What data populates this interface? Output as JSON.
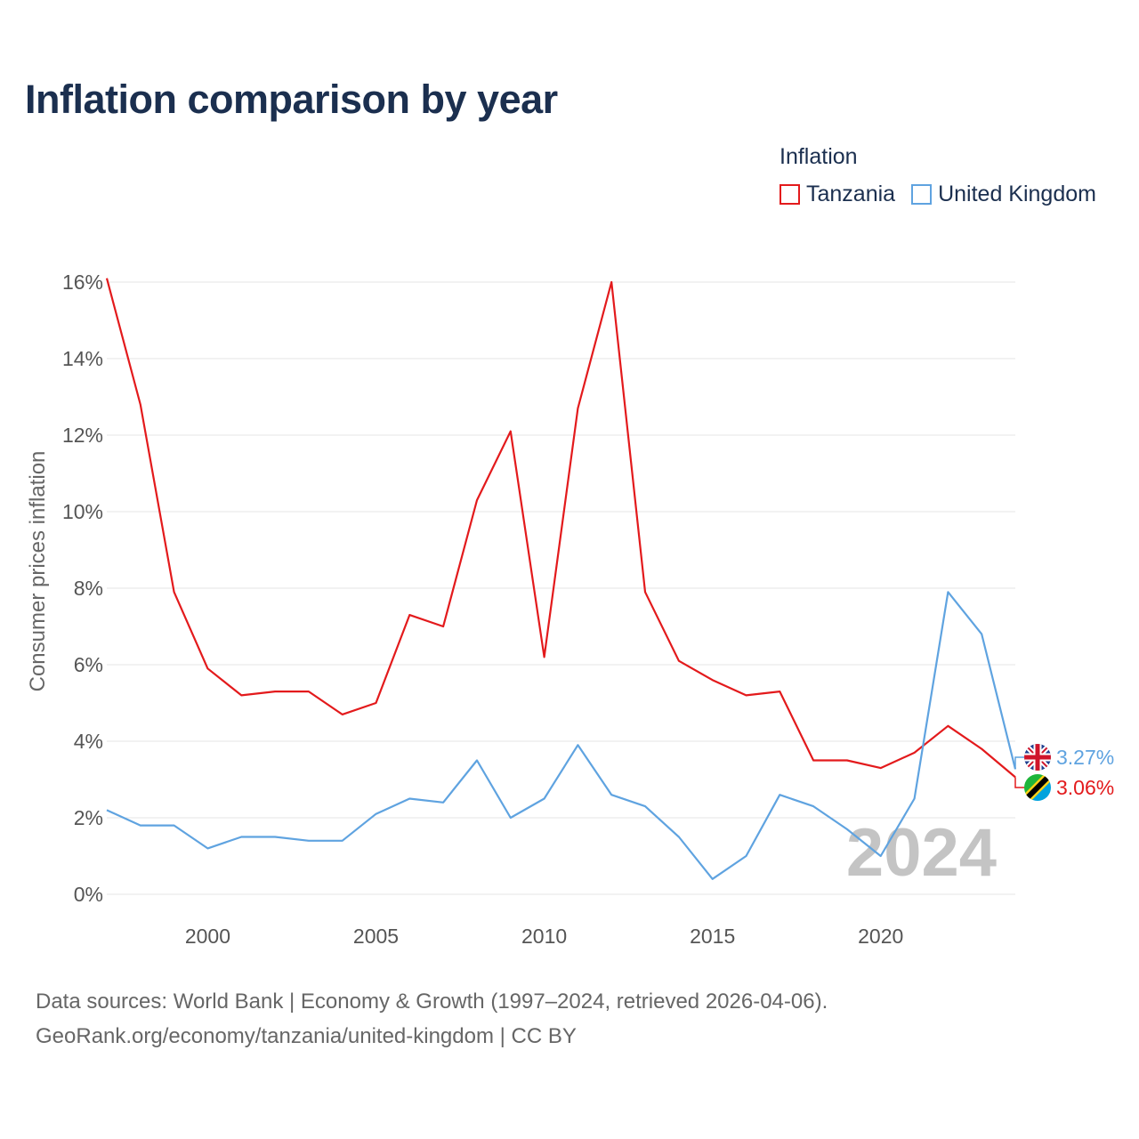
{
  "title": "Inflation comparison by year",
  "legend": {
    "title": "Inflation",
    "items": [
      {
        "name": "Tanzania",
        "color": "#e31a1c"
      },
      {
        "name": "United Kingdom",
        "color": "#5fa3e0"
      }
    ]
  },
  "footer": {
    "line1": "Data sources: World Bank | Economy & Growth (1997–2024, retrieved 2026-04-06).",
    "line2": "GeoRank.org/economy/tanzania/united-kingdom | CC BY"
  },
  "chart_data": {
    "type": "line",
    "title": "Inflation comparison by year",
    "xlabel": "",
    "ylabel": "Consumer prices inflation",
    "xlim": [
      1997,
      2024
    ],
    "ylim": [
      0,
      16
    ],
    "y_ticks": [
      0,
      2,
      4,
      6,
      8,
      10,
      12,
      14,
      16
    ],
    "y_tick_labels": [
      "0%",
      "2%",
      "4%",
      "6%",
      "8%",
      "10%",
      "12%",
      "14%",
      "16%"
    ],
    "x_ticks": [
      2000,
      2005,
      2010,
      2015,
      2020
    ],
    "x_tick_labels": [
      "2000",
      "2005",
      "2010",
      "2015",
      "2020"
    ],
    "x": [
      1997,
      1998,
      1999,
      2000,
      2001,
      2002,
      2003,
      2004,
      2005,
      2006,
      2007,
      2008,
      2009,
      2010,
      2011,
      2012,
      2013,
      2014,
      2015,
      2016,
      2017,
      2018,
      2019,
      2020,
      2021,
      2022,
      2023,
      2024
    ],
    "series": [
      {
        "name": "Tanzania",
        "color": "#e31a1c",
        "values": [
          16.1,
          12.8,
          7.9,
          5.9,
          5.2,
          5.3,
          5.3,
          4.7,
          5.0,
          7.3,
          7.0,
          10.3,
          12.1,
          6.2,
          12.7,
          16.0,
          7.9,
          6.1,
          5.6,
          5.2,
          5.3,
          3.5,
          3.5,
          3.3,
          3.7,
          4.4,
          3.8,
          3.06
        ],
        "end_label": "3.06%"
      },
      {
        "name": "United Kingdom",
        "color": "#5fa3e0",
        "values": [
          2.2,
          1.8,
          1.8,
          1.2,
          1.5,
          1.5,
          1.4,
          1.4,
          2.1,
          2.5,
          2.4,
          3.5,
          2.0,
          2.5,
          3.9,
          2.6,
          2.3,
          1.5,
          0.4,
          1.0,
          2.6,
          2.3,
          1.7,
          1.0,
          2.5,
          7.9,
          6.8,
          3.27
        ],
        "end_label": "3.27%"
      }
    ],
    "year_watermark": "2024",
    "grid": true
  }
}
